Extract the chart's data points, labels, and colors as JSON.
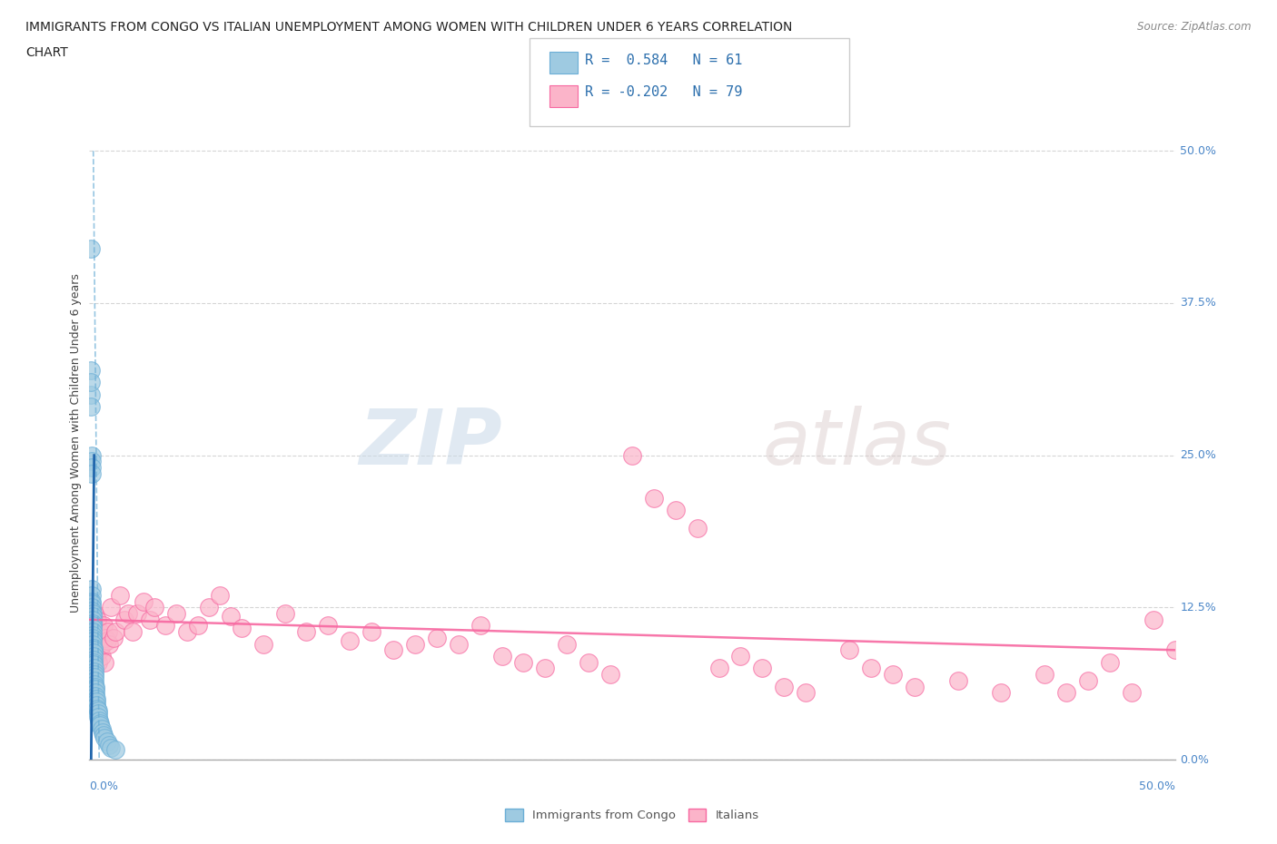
{
  "title_line1": "IMMIGRANTS FROM CONGO VS ITALIAN UNEMPLOYMENT AMONG WOMEN WITH CHILDREN UNDER 6 YEARS CORRELATION",
  "title_line2": "CHART",
  "source": "Source: ZipAtlas.com",
  "ylabel": "Unemployment Among Women with Children Under 6 years",
  "ytick_vals": [
    0.0,
    12.5,
    25.0,
    37.5,
    50.0
  ],
  "ytick_labels": [
    "0.0%",
    "12.5%",
    "25.0%",
    "37.5%",
    "50.0%"
  ],
  "xlim": [
    0.0,
    50.0
  ],
  "ylim": [
    0.0,
    52.0
  ],
  "congo_color": "#9ecae1",
  "congo_edge_color": "#6baed6",
  "italian_color": "#fbb4c9",
  "italian_edge_color": "#f768a1",
  "congo_trend_color": "#2166ac",
  "congo_dash_color": "#6baed6",
  "italian_trend_color": "#f768a1",
  "watermark_zip": "ZIP",
  "watermark_atlas": "atlas",
  "congo_x": [
    0.05,
    0.06,
    0.07,
    0.08,
    0.08,
    0.09,
    0.09,
    0.1,
    0.1,
    0.1,
    0.11,
    0.11,
    0.12,
    0.12,
    0.12,
    0.13,
    0.13,
    0.14,
    0.14,
    0.15,
    0.15,
    0.15,
    0.16,
    0.16,
    0.17,
    0.17,
    0.18,
    0.18,
    0.19,
    0.2,
    0.2,
    0.21,
    0.21,
    0.22,
    0.22,
    0.23,
    0.24,
    0.25,
    0.25,
    0.26,
    0.27,
    0.28,
    0.29,
    0.3,
    0.32,
    0.33,
    0.35,
    0.38,
    0.4,
    0.42,
    0.45,
    0.48,
    0.5,
    0.55,
    0.6,
    0.65,
    0.7,
    0.8,
    0.9,
    1.0,
    1.2
  ],
  "congo_y": [
    42.0,
    30.0,
    29.0,
    32.0,
    31.0,
    25.0,
    24.5,
    24.0,
    23.5,
    14.0,
    13.5,
    13.0,
    12.8,
    12.5,
    12.2,
    12.0,
    11.8,
    11.5,
    11.2,
    11.0,
    10.8,
    10.5,
    10.2,
    10.0,
    9.8,
    9.5,
    9.2,
    9.0,
    8.8,
    8.5,
    8.2,
    8.0,
    7.8,
    7.5,
    7.2,
    7.0,
    6.8,
    6.5,
    6.2,
    6.0,
    5.8,
    5.5,
    5.2,
    5.0,
    4.8,
    4.5,
    4.2,
    4.0,
    3.8,
    3.5,
    3.2,
    3.0,
    2.8,
    2.5,
    2.2,
    2.0,
    1.8,
    1.5,
    1.2,
    1.0,
    0.8
  ],
  "italian_x": [
    0.2,
    0.22,
    0.25,
    0.28,
    0.3,
    0.32,
    0.35,
    0.38,
    0.4,
    0.42,
    0.45,
    0.48,
    0.5,
    0.55,
    0.6,
    0.65,
    0.7,
    0.75,
    0.8,
    0.85,
    0.9,
    1.0,
    1.1,
    1.2,
    1.4,
    1.6,
    1.8,
    2.0,
    2.2,
    2.5,
    2.8,
    3.0,
    3.5,
    4.0,
    4.5,
    5.0,
    5.5,
    6.0,
    6.5,
    7.0,
    8.0,
    9.0,
    10.0,
    11.0,
    12.0,
    13.0,
    14.0,
    15.0,
    16.0,
    17.0,
    18.0,
    19.0,
    20.0,
    21.0,
    22.0,
    23.0,
    24.0,
    25.0,
    26.0,
    27.0,
    28.0,
    29.0,
    30.0,
    31.0,
    32.0,
    33.0,
    35.0,
    36.0,
    37.0,
    38.0,
    40.0,
    42.0,
    44.0,
    45.0,
    46.0,
    47.0,
    48.0,
    49.0,
    50.0
  ],
  "italian_y": [
    10.5,
    12.0,
    11.0,
    9.5,
    10.0,
    8.5,
    11.5,
    9.8,
    8.0,
    10.2,
    9.2,
    10.5,
    9.0,
    8.5,
    9.5,
    11.0,
    8.0,
    10.0,
    9.8,
    10.5,
    9.5,
    12.5,
    10.0,
    10.5,
    13.5,
    11.5,
    12.0,
    10.5,
    12.0,
    13.0,
    11.5,
    12.5,
    11.0,
    12.0,
    10.5,
    11.0,
    12.5,
    13.5,
    11.8,
    10.8,
    9.5,
    12.0,
    10.5,
    11.0,
    9.8,
    10.5,
    9.0,
    9.5,
    10.0,
    9.5,
    11.0,
    8.5,
    8.0,
    7.5,
    9.5,
    8.0,
    7.0,
    25.0,
    21.5,
    20.5,
    19.0,
    7.5,
    8.5,
    7.5,
    6.0,
    5.5,
    9.0,
    7.5,
    7.0,
    6.0,
    6.5,
    5.5,
    7.0,
    5.5,
    6.5,
    8.0,
    5.5,
    11.5,
    9.0
  ],
  "congo_trend_x0": 0.08,
  "congo_trend_y0": 0.0,
  "congo_trend_x1": 0.22,
  "congo_trend_y1": 25.0,
  "congo_dash_x0": 0.18,
  "congo_dash_y0": 50.0,
  "congo_dash_x1": 0.45,
  "congo_dash_y1": 0.0,
  "italian_trend_x0": 0.0,
  "italian_trend_y0": 11.5,
  "italian_trend_x1": 50.0,
  "italian_trend_y1": 9.0
}
